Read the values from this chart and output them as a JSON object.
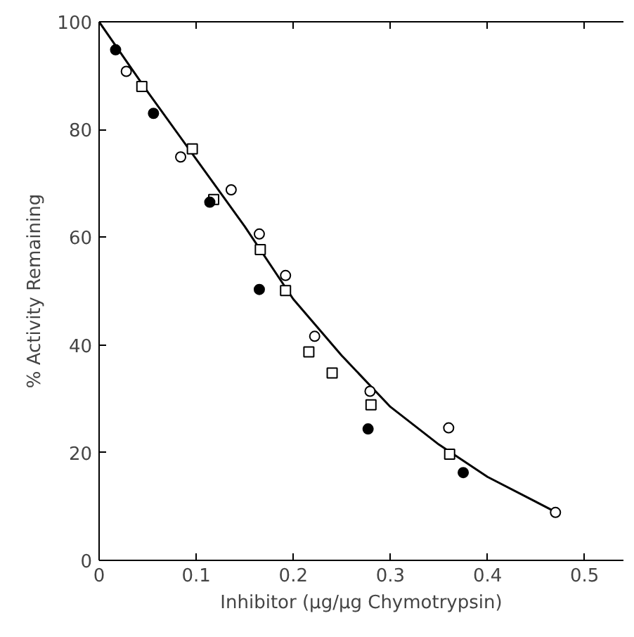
{
  "chart_data": {
    "type": "scatter",
    "xlabel": "Inhibitor (μg/μg Chymotrypsin)",
    "ylabel": "% Activity Remaining",
    "xlim": [
      0,
      0.54
    ],
    "ylim": [
      0,
      100
    ],
    "xticks": [
      0,
      {
        "value": 0.1,
        "label": "0.1"
      },
      {
        "value": 0.2,
        "label": "0.2"
      },
      {
        "value": 0.3,
        "label": "0.3"
      },
      {
        "value": 0.4,
        "label": "0.4"
      },
      {
        "value": 0.5,
        "label": "0.5"
      }
    ],
    "yticks": [
      0,
      20,
      40,
      60,
      80,
      100
    ],
    "grid": false,
    "series": [
      {
        "marker": "circle",
        "color": "#000000",
        "x": [
          0.017,
          0.056,
          0.114,
          0.165,
          0.277,
          0.375
        ],
        "values": [
          94.8,
          83.0,
          66.5,
          50.3,
          24.4,
          16.3
        ]
      },
      {
        "marker": "circle",
        "color": "#ffffff",
        "x": [
          0.028,
          0.084,
          0.136,
          0.165,
          0.192,
          0.222,
          0.279,
          0.36,
          0.47
        ],
        "values": [
          90.8,
          74.9,
          68.8,
          60.6,
          52.9,
          41.6,
          31.4,
          24.6,
          8.9
        ]
      },
      {
        "marker": "square",
        "color": "#ffffff",
        "x": [
          0.044,
          0.096,
          0.118,
          0.166,
          0.192,
          0.216,
          0.24,
          0.28,
          0.361
        ],
        "values": [
          88.0,
          76.4,
          67.0,
          57.7,
          50.1,
          38.7,
          34.8,
          28.9,
          19.7
        ]
      },
      {
        "type": "line",
        "line_style": "solid",
        "color": "#000000",
        "x": [
          0,
          0.05,
          0.1,
          0.15,
          0.2,
          0.25,
          0.3,
          0.35,
          0.4,
          0.47
        ],
        "values": [
          100,
          87,
          74.5,
          62,
          48.5,
          38,
          28.5,
          21.5,
          15.5,
          9
        ]
      }
    ]
  }
}
